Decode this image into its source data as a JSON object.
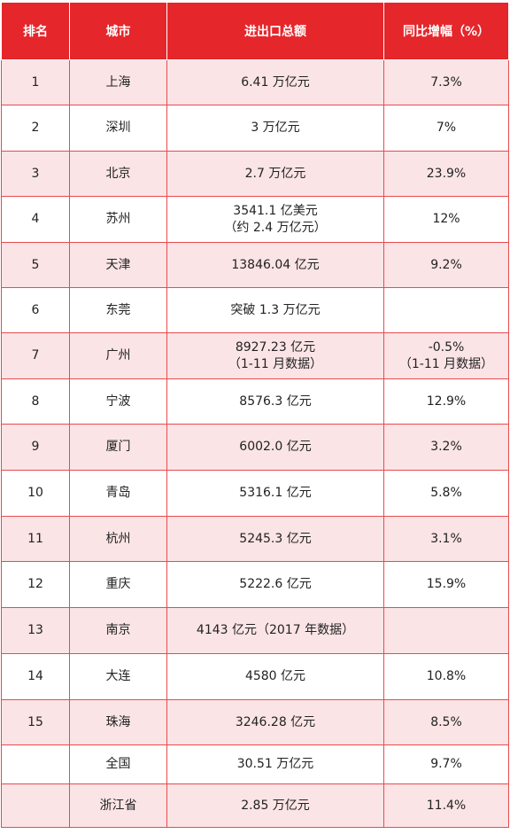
{
  "header": {
    "rank": "排名",
    "city": "城市",
    "total": "进出口总额",
    "growth": "同比增幅（%）"
  },
  "rows": [
    {
      "rank": "1",
      "city": "上海",
      "total": [
        "6.41 万亿元"
      ],
      "growth": [
        "7.3%"
      ]
    },
    {
      "rank": "2",
      "city": "深圳",
      "total": [
        "3 万亿元"
      ],
      "growth": [
        "7%"
      ]
    },
    {
      "rank": "3",
      "city": "北京",
      "total": [
        "2.7 万亿元"
      ],
      "growth": [
        "23.9%"
      ]
    },
    {
      "rank": "4",
      "city": "苏州",
      "total": [
        "3541.1 亿美元",
        "（约 2.4 万亿元）"
      ],
      "growth": [
        "12%"
      ]
    },
    {
      "rank": "5",
      "city": "天津",
      "total": [
        "13846.04 亿元"
      ],
      "growth": [
        "9.2%"
      ]
    },
    {
      "rank": "6",
      "city": "东莞",
      "total": [
        "突破 1.3 万亿元"
      ],
      "growth": [
        ""
      ]
    },
    {
      "rank": "7",
      "city": "广州",
      "total": [
        "8927.23 亿元",
        "（1-11 月数据）"
      ],
      "growth": [
        "-0.5%",
        "（1-11 月数据）"
      ]
    },
    {
      "rank": "8",
      "city": "宁波",
      "total": [
        "8576.3 亿元"
      ],
      "growth": [
        "12.9%"
      ]
    },
    {
      "rank": "9",
      "city": "厦门",
      "total": [
        "6002.0 亿元"
      ],
      "growth": [
        "3.2%"
      ]
    },
    {
      "rank": "10",
      "city": "青岛",
      "total": [
        "5316.1 亿元"
      ],
      "growth": [
        "5.8%"
      ]
    },
    {
      "rank": "11",
      "city": "杭州",
      "total": [
        "5245.3 亿元"
      ],
      "growth": [
        "3.1%"
      ]
    },
    {
      "rank": "12",
      "city": "重庆",
      "total": [
        "5222.6 亿元"
      ],
      "growth": [
        "15.9%"
      ]
    },
    {
      "rank": "13",
      "city": "南京",
      "total": [
        "4143 亿元（2017 年数据）"
      ],
      "growth": [
        ""
      ]
    },
    {
      "rank": "14",
      "city": "大连",
      "total": [
        "4580 亿元"
      ],
      "growth": [
        "10.8%"
      ]
    },
    {
      "rank": "15",
      "city": "珠海",
      "total": [
        "3246.28 亿元"
      ],
      "growth": [
        "8.5%"
      ]
    },
    {
      "rank": "",
      "city": "全国",
      "total": [
        "30.51 万亿元"
      ],
      "growth": [
        "9.7%"
      ]
    },
    {
      "rank": "",
      "city": "浙江省",
      "total": [
        "2.85 万亿元"
      ],
      "growth": [
        "11.4%"
      ]
    }
  ],
  "colors": {
    "header_bg": "#e5262b",
    "header_text": "#ffffff",
    "row_shade": "#fbe4e5",
    "border": "#e84a4f"
  }
}
